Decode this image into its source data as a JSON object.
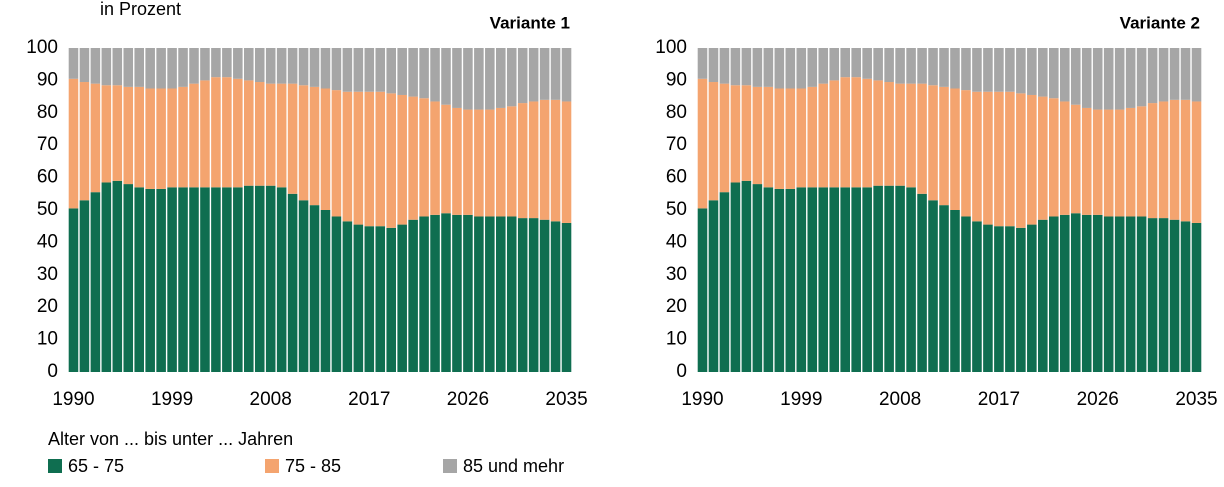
{
  "subtitle": "in Prozent",
  "legend_title": "Alter von ... bis unter ... Jahren",
  "chart_data": [
    {
      "type": "stacked_bar",
      "title": "Variante 1",
      "categories": [
        "1990",
        null,
        null,
        null,
        null,
        null,
        null,
        null,
        null,
        "1999",
        null,
        null,
        null,
        null,
        null,
        null,
        null,
        null,
        "2008",
        null,
        null,
        null,
        null,
        null,
        null,
        null,
        null,
        "2017",
        null,
        null,
        null,
        null,
        null,
        null,
        null,
        null,
        "2026",
        null,
        null,
        null,
        null,
        null,
        null,
        null,
        null,
        "2035"
      ],
      "ylim": [
        0,
        100
      ],
      "yticks": [
        0,
        10,
        20,
        30,
        40,
        50,
        60,
        70,
        80,
        90,
        100
      ],
      "series": [
        {
          "name": "65 - 75",
          "color": "#0f6e50",
          "values": [
            50.5,
            53,
            55.5,
            58.5,
            59,
            58,
            57,
            56.5,
            56.5,
            57,
            57,
            57,
            57,
            57,
            57,
            57,
            57.5,
            57.5,
            57.5,
            57,
            55,
            53,
            51.5,
            50,
            48,
            46.5,
            45.5,
            45,
            45,
            44.5,
            45.5,
            47,
            48,
            48.5,
            49,
            48.5,
            48.5,
            48,
            48,
            48,
            48,
            47.5,
            47.5,
            47,
            46.5,
            46
          ]
        },
        {
          "name": "75 - 85",
          "color": "#f4a46f",
          "values": [
            40,
            36.5,
            33.5,
            30,
            29.5,
            30,
            31,
            31,
            31,
            30.5,
            31,
            32,
            33,
            34,
            34,
            33.5,
            32.5,
            32,
            31.5,
            32,
            34,
            35.5,
            36.5,
            37.5,
            39,
            40,
            41,
            41.5,
            41.5,
            41.5,
            40,
            38,
            36.5,
            35,
            33.5,
            33,
            32.5,
            33,
            33,
            33.5,
            34,
            35.5,
            36,
            37,
            37.5,
            37.5
          ]
        },
        {
          "name": "85 und mehr",
          "color": "#a6a6a6",
          "values": [
            9.5,
            10.5,
            11,
            11.5,
            11.5,
            12,
            12,
            12.5,
            12.5,
            12.5,
            12,
            11,
            10,
            9,
            9,
            9.5,
            10,
            10.5,
            11,
            11,
            11,
            11.5,
            12,
            12.5,
            13,
            13.5,
            13.5,
            13.5,
            13.5,
            14,
            14.5,
            15,
            15.5,
            16.5,
            17.5,
            18.5,
            19,
            19,
            19,
            18.5,
            18,
            17,
            16.5,
            16,
            16,
            16.5
          ]
        }
      ]
    },
    {
      "type": "stacked_bar",
      "title": "Variante 2",
      "categories": [
        "1990",
        null,
        null,
        null,
        null,
        null,
        null,
        null,
        null,
        "1999",
        null,
        null,
        null,
        null,
        null,
        null,
        null,
        null,
        "2008",
        null,
        null,
        null,
        null,
        null,
        null,
        null,
        null,
        "2017",
        null,
        null,
        null,
        null,
        null,
        null,
        null,
        null,
        "2026",
        null,
        null,
        null,
        null,
        null,
        null,
        null,
        null,
        "2035"
      ],
      "ylim": [
        0,
        100
      ],
      "yticks": [
        0,
        10,
        20,
        30,
        40,
        50,
        60,
        70,
        80,
        90,
        100
      ],
      "series": [
        {
          "name": "65 - 75",
          "color": "#0f6e50",
          "values": [
            50.5,
            53,
            55.5,
            58.5,
            59,
            58,
            57,
            56.5,
            56.5,
            57,
            57,
            57,
            57,
            57,
            57,
            57,
            57.5,
            57.5,
            57.5,
            57,
            55,
            53,
            51.5,
            50,
            48,
            46.5,
            45.5,
            45,
            45,
            44.5,
            45.5,
            47,
            48,
            48.5,
            49,
            48.5,
            48.5,
            48,
            48,
            48,
            48,
            47.5,
            47.5,
            47,
            46.5,
            46
          ]
        },
        {
          "name": "75 - 85",
          "color": "#f4a46f",
          "values": [
            40,
            36.5,
            33.5,
            30,
            29.5,
            30,
            31,
            31,
            31,
            30.5,
            31,
            32,
            33,
            34,
            34,
            33.5,
            32.5,
            32,
            31.5,
            32,
            34,
            35.5,
            36.5,
            37.5,
            39,
            40,
            41,
            41.5,
            41.5,
            41.5,
            40,
            38,
            36.5,
            35,
            33.5,
            33,
            32.5,
            33,
            33,
            33.5,
            34,
            35.5,
            36,
            37,
            37.5,
            37.5
          ]
        },
        {
          "name": "85 und mehr",
          "color": "#a6a6a6",
          "values": [
            9.5,
            10.5,
            11,
            11.5,
            11.5,
            12,
            12,
            12.5,
            12.5,
            12.5,
            12,
            11,
            10,
            9,
            9,
            9.5,
            10,
            10.5,
            11,
            11,
            11,
            11.5,
            12,
            12.5,
            13,
            13.5,
            13.5,
            13.5,
            13.5,
            14,
            14.5,
            15,
            15.5,
            16.5,
            17.5,
            18.5,
            19,
            19,
            19,
            18.5,
            18,
            17,
            16.5,
            16,
            16,
            16.5
          ]
        }
      ]
    }
  ]
}
